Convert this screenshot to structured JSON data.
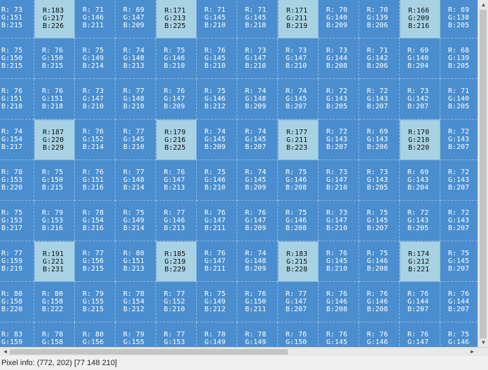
{
  "grid": {
    "rows": [
      [
        [
          73,
          151,
          215
        ],
        [
          183,
          217,
          226
        ],
        [
          71,
          146,
          211
        ],
        [
          69,
          147,
          209
        ],
        [
          171,
          213,
          225
        ],
        [
          71,
          145,
          210
        ],
        [
          71,
          145,
          210
        ],
        [
          171,
          211,
          219
        ],
        [
          70,
          140,
          209
        ],
        [
          70,
          139,
          206
        ],
        [
          166,
          209,
          216
        ],
        [
          69,
          138,
          205
        ]
      ],
      [
        [
          75,
          150,
          215
        ],
        [
          76,
          150,
          215
        ],
        [
          75,
          149,
          214
        ],
        [
          74,
          148,
          213
        ],
        [
          75,
          146,
          210
        ],
        [
          76,
          145,
          210
        ],
        [
          73,
          147,
          210
        ],
        [
          73,
          147,
          210
        ],
        [
          73,
          144,
          208
        ],
        [
          71,
          142,
          206
        ],
        [
          69,
          140,
          204
        ],
        [
          68,
          139,
          205
        ]
      ],
      [
        [
          76,
          151,
          218
        ],
        [
          76,
          151,
          218
        ],
        [
          73,
          147,
          210
        ],
        [
          77,
          148,
          210
        ],
        [
          76,
          147,
          209
        ],
        [
          75,
          146,
          212
        ],
        [
          74,
          148,
          209
        ],
        [
          74,
          145,
          207
        ],
        [
          72,
          143,
          205
        ],
        [
          72,
          143,
          207
        ],
        [
          73,
          142,
          207
        ],
        [
          71,
          140,
          205
        ]
      ],
      [
        [
          74,
          154,
          217
        ],
        [
          187,
          220,
          229
        ],
        [
          76,
          152,
          214
        ],
        [
          77,
          145,
          210
        ],
        [
          179,
          216,
          225
        ],
        [
          74,
          145,
          209
        ],
        [
          74,
          145,
          207
        ],
        [
          177,
          211,
          223
        ],
        [
          72,
          143,
          207
        ],
        [
          69,
          143,
          206
        ],
        [
          170,
          210,
          220
        ],
        [
          72,
          143,
          207
        ]
      ],
      [
        [
          78,
          153,
          220
        ],
        [
          75,
          150,
          215
        ],
        [
          76,
          151,
          216
        ],
        [
          77,
          148,
          214
        ],
        [
          76,
          147,
          213
        ],
        [
          75,
          146,
          210
        ],
        [
          74,
          145,
          209
        ],
        [
          75,
          146,
          208
        ],
        [
          73,
          147,
          210
        ],
        [
          73,
          143,
          205
        ],
        [
          69,
          143,
          204
        ],
        [
          72,
          143,
          207
        ]
      ],
      [
        [
          75,
          153,
          217
        ],
        [
          79,
          153,
          216
        ],
        [
          78,
          154,
          216
        ],
        [
          75,
          149,
          214
        ],
        [
          77,
          146,
          213
        ],
        [
          76,
          147,
          211
        ],
        [
          76,
          147,
          209
        ],
        [
          75,
          146,
          208
        ],
        [
          73,
          147,
          210
        ],
        [
          75,
          145,
          207
        ],
        [
          72,
          143,
          205
        ],
        [
          72,
          143,
          207
        ]
      ],
      [
        [
          77,
          159,
          219
        ],
        [
          191,
          221,
          231
        ],
        [
          77,
          156,
          215
        ],
        [
          80,
          151,
          213
        ],
        [
          185,
          219,
          229
        ],
        [
          76,
          147,
          211
        ],
        [
          74,
          148,
          209
        ],
        [
          183,
          215,
          228
        ],
        [
          76,
          145,
          210
        ],
        [
          75,
          146,
          208
        ],
        [
          174,
          212,
          221
        ],
        [
          75,
          145,
          207
        ]
      ],
      [
        [
          80,
          158,
          220
        ],
        [
          80,
          158,
          222
        ],
        [
          79,
          155,
          215
        ],
        [
          78,
          154,
          212
        ],
        [
          77,
          152,
          210
        ],
        [
          75,
          149,
          212
        ],
        [
          76,
          150,
          211
        ],
        [
          77,
          147,
          207
        ],
        [
          76,
          146,
          208
        ],
        [
          76,
          146,
          208
        ],
        [
          76,
          144,
          207
        ],
        [
          76,
          144,
          207
        ]
      ],
      [
        [
          83,
          159,
          222
        ],
        [
          78,
          158,
          220
        ],
        [
          80,
          156,
          218
        ],
        [
          79,
          155,
          216
        ],
        [
          77,
          153,
          214
        ],
        [
          78,
          149,
          212
        ],
        [
          78,
          149,
          212
        ],
        [
          76,
          150,
          212
        ],
        [
          76,
          145,
          210
        ],
        [
          76,
          146,
          210
        ],
        [
          76,
          147,
          208
        ],
        [
          75,
          146,
          208
        ]
      ]
    ],
    "highlight_color": "#a7d2e3",
    "cell_color": "#4a8ecf"
  },
  "icons": {
    "scroll_up": "triangle-up",
    "scroll_down": "triangle-down",
    "scroll_left": "triangle-left",
    "scroll_right": "triangle-right"
  },
  "status": {
    "text": "Pixel info: (772, 202)  [77 148 210]"
  }
}
